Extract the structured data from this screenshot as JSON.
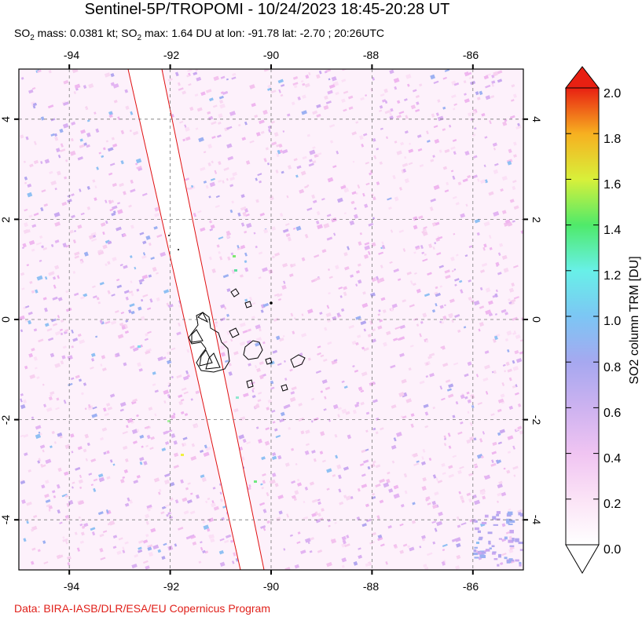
{
  "title": "Sentinel-5P/TROPOMI - 10/24/2023 18:45-20:28 UT",
  "subtitle": {
    "mass_prefix": "SO",
    "mass_sub": "2",
    "mass_text": " mass: 0.0381 kt; ",
    "max_prefix": "SO",
    "max_sub": "2",
    "max_text": " max: 1.64 DU at lon: -91.78 lat: -2.70 ; 20:26UTC"
  },
  "credit": "Data: BIRA-IASB/DLR/ESA/EU Copernicus Program",
  "map": {
    "lon_range": [
      -95,
      -85
    ],
    "lat_range": [
      -5,
      5
    ],
    "lon_ticks": [
      "-94",
      "-92",
      "-90",
      "-88",
      "-86"
    ],
    "lat_ticks": [
      "4",
      "2",
      "0",
      "-2",
      "-4"
    ],
    "grid": "dashed"
  },
  "colorbar": {
    "label": "SO2 column TRM [DU]",
    "range": [
      0.0,
      2.0
    ],
    "tick_labels": [
      "2.0",
      "1.8",
      "1.6",
      "1.4",
      "1.2",
      "1.0",
      "0.8",
      "0.6",
      "0.4",
      "0.2",
      "0.0"
    ],
    "colors": [
      "#ffffff",
      "#f9d6f2",
      "#e6b8f0",
      "#b9a8ef",
      "#8fa8f0",
      "#6ed9f5",
      "#56f08a",
      "#c8f043",
      "#f7f02a",
      "#f7a020",
      "#f0401a",
      "#e01010"
    ]
  }
}
